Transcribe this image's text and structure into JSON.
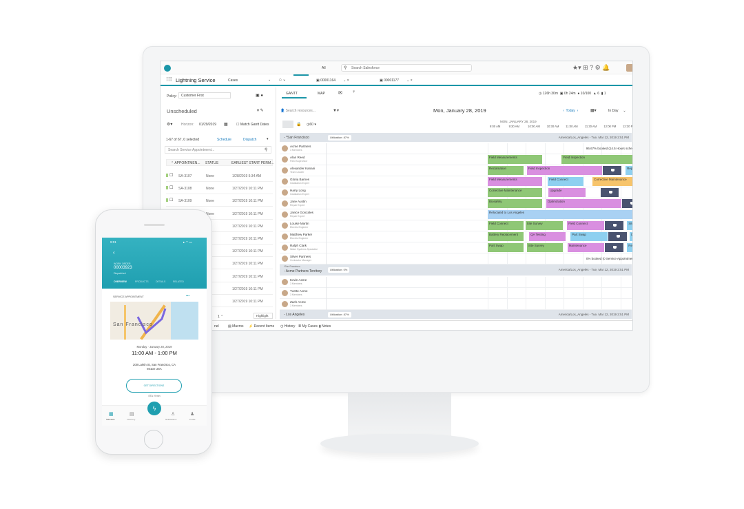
{
  "colors": {
    "accent": "#1b96a8",
    "green": "#8fc776",
    "purple": "#d98fe0",
    "blue": "#8ed0f0",
    "orange": "#f7c46b",
    "pink": "#f26e93",
    "break": "#4a5370",
    "relocated": "#a9d1f3"
  },
  "header": {
    "search_scope": "All",
    "search_placeholder": "Search Salesforce",
    "app_name": "Lightning Service",
    "nav_object": "Cases",
    "tabs": [
      {
        "label": "00001164"
      },
      {
        "label": "00001177"
      }
    ]
  },
  "left": {
    "policy_label": "Policy:",
    "policy_value": "Customer First",
    "list_title": "Unscheduled",
    "horizon_label": "Horizon:",
    "horizon_value": "01/29/2019",
    "match_gantt": "Match Gantt Dates",
    "count": "1-67 of 67, 0 selected",
    "schedule": "Schedule",
    "dispatch": "Dispatch",
    "search_placeholder": "Search Service Appointment...",
    "columns": [
      "APPOINTMEN...",
      "STATUS",
      "EARLIEST START PERM..."
    ],
    "rows": [
      {
        "id": "SA-3107",
        "status": "None",
        "start": "1/28/2019 5:34 AM"
      },
      {
        "id": "SA-3108",
        "status": "None",
        "start": "1/27/2019 10:11 PM"
      },
      {
        "id": "SA-3109",
        "status": "None",
        "start": "1/27/2019 10:11 PM"
      },
      {
        "id": "",
        "status": "None",
        "start": "1/27/2019 10:11 PM"
      },
      {
        "id": "",
        "status": "",
        "start": "1/27/2019 10:11 PM"
      },
      {
        "id": "",
        "status": "",
        "start": "1/27/2019 10:11 PM"
      },
      {
        "id": "",
        "status": "",
        "start": "1/27/2019 10:11 PM"
      },
      {
        "id": "",
        "status": "",
        "start": "1/27/2019 10:11 PM"
      },
      {
        "id": "",
        "status": "",
        "start": "1/27/2019 10:11 PM"
      },
      {
        "id": "",
        "status": "",
        "start": "1/27/2019 10:11 PM"
      },
      {
        "id": "",
        "status": "",
        "start": "1/27/2019 10:11 PM"
      }
    ],
    "page": "1",
    "highlight": "Highlight"
  },
  "gantt": {
    "tab_gantt": "GANTT",
    "tab_map": "MAP",
    "kpis": [
      "126h 30m",
      "0h 24m",
      "10/100",
      "6",
      "1"
    ],
    "search_placeholder": "Search resources...",
    "date_title": "Mon, January 28, 2019",
    "today": "Today",
    "view": "In Day",
    "day_header": "MON, JANUARY 28, 2019",
    "zoom": "60",
    "times": [
      "9:00 AM",
      "9:30 AM",
      "10:00 AM",
      "10:30 AM",
      "11:00 AM",
      "11:30 AM",
      "12:00 PM",
      "12:30 PM",
      "1:00 PM",
      "1:30 PM",
      "2:00 PM",
      "2:30 PM",
      "3:00 PM",
      "3:30 PM",
      "4:00 PM",
      "4:30 PM"
    ],
    "rows": [
      {
        "type": "group",
        "name": "*San Francisco",
        "util": "Utilization: 87%",
        "tz": "America/Los_Angeles - Tue, Mar 12, 2019 2:51 PM"
      },
      {
        "type": "res",
        "name": "Acme Partners",
        "role": "3 Members",
        "note": "96.67% booked (14.5 Hours scheduled out of 15)"
      },
      {
        "type": "res",
        "name": "Alan Reed",
        "role": "Field Supervisor",
        "bars": [
          {
            "l": "Field Measurements",
            "c": "green",
            "s": 9,
            "e": 10.45
          },
          {
            "l": "Field Inspection",
            "c": "green",
            "s": 10.95,
            "e": 12.97
          },
          {
            "l": "",
            "c": "break",
            "s": 12.97,
            "e": 13.45
          },
          {
            "l": "Corrective Maintenance",
            "c": "blue",
            "s": 13.99,
            "e": 15.46
          }
        ]
      },
      {
        "type": "res",
        "name": "Alexander Kanani",
        "role": "Team Leader",
        "bars": [
          {
            "l": "Reclamation",
            "c": "green",
            "s": 9,
            "e": 9.96
          },
          {
            "l": "Field Inspection",
            "c": "purple",
            "s": 10.03,
            "e": 12.03
          },
          {
            "l": "",
            "c": "break",
            "s": 12.03,
            "e": 12.52
          },
          {
            "l": "Repair Estimate",
            "c": "blue",
            "s": 12.63,
            "e": 13.61
          },
          {
            "l": "Demolization",
            "c": "orange",
            "s": 15.28,
            "e": 17
          }
        ]
      },
      {
        "type": "res",
        "name": "Gloria Barnes",
        "role": "Installation Expert",
        "bars": [
          {
            "l": "Field Measurements",
            "c": "purple",
            "s": 9,
            "e": 10.45
          },
          {
            "l": "Field Connect",
            "c": "blue",
            "s": 10.58,
            "e": 11.54
          },
          {
            "l": "Corrective Maintenance",
            "c": "orange",
            "s": 11.76,
            "e": 13.25
          },
          {
            "l": "",
            "c": "break",
            "s": 13.25,
            "e": 13.74
          },
          {
            "l": "Break-Fix",
            "c": "pink",
            "s": 13.95,
            "e": 15.46
          },
          {
            "l": "Design",
            "c": "pink",
            "s": 15.55,
            "e": 16.55
          },
          {
            "l": "B",
            "c": "pink",
            "s": 16.82,
            "e": 17
          }
        ]
      },
      {
        "type": "res",
        "name": "Harry Long",
        "role": "Installation Expert",
        "bars": [
          {
            "l": "Corrective Maintenance",
            "c": "green",
            "s": 9,
            "e": 10.45
          },
          {
            "l": "Upgrade",
            "c": "purple",
            "s": 10.6,
            "e": 11.6
          },
          {
            "l": "",
            "c": "break",
            "s": 11.98,
            "e": 12.45
          },
          {
            "l": "Rebuild",
            "c": "orange",
            "s": 13.48,
            "e": 15.46
          }
        ]
      },
      {
        "type": "res",
        "name": "Jane Austin",
        "role": "Repair Expert",
        "bars": [
          {
            "l": "Biosafety",
            "c": "green",
            "s": 9,
            "e": 10.45
          },
          {
            "l": "Optimization",
            "c": "purple",
            "s": 10.54,
            "e": 12.54
          },
          {
            "l": "",
            "c": "break",
            "s": 12.54,
            "e": 13.03
          },
          {
            "l": "Site Survey",
            "c": "blue",
            "s": 13.12,
            "e": 14.12
          },
          {
            "l": "Field Connect",
            "c": "orange",
            "s": 14.21,
            "e": 15.19
          },
          {
            "l": "Field Measurements",
            "c": "orange",
            "s": 15.24,
            "e": 16.73
          },
          {
            "l": "S",
            "c": "orange",
            "s": 16.93,
            "e": 17
          }
        ]
      },
      {
        "type": "res",
        "name": "Janice Gonzales",
        "role": "Repair Expert",
        "bars": [
          {
            "l": "Relocated to Los Angeles",
            "c": "relocated",
            "s": 9,
            "e": 17
          }
        ]
      },
      {
        "type": "res",
        "name": "Louise Martin",
        "role": "Electric Engineer",
        "bars": [
          {
            "l": "Field Connect",
            "c": "green",
            "s": 9,
            "e": 9.96
          },
          {
            "l": "Site Survey",
            "c": "green",
            "s": 9.99,
            "e": 10.99
          },
          {
            "l": "Field Connect",
            "c": "purple",
            "s": 11.09,
            "e": 12.09
          },
          {
            "l": "",
            "c": "break",
            "s": 12.09,
            "e": 12.58
          },
          {
            "l": "Site Survey",
            "c": "blue",
            "s": 12.67,
            "e": 13.66
          },
          {
            "l": "Upgrade",
            "c": "blue",
            "s": 13.75,
            "e": 14.73
          },
          {
            "l": "Repair Estimate",
            "c": "orange",
            "s": 14.93,
            "e": 15.93
          },
          {
            "l": "Field Measurem...",
            "c": "orange",
            "s": 16.24,
            "e": 17
          }
        ]
      },
      {
        "type": "res",
        "name": "Matthew Parker",
        "role": "Electric Engineer",
        "bars": [
          {
            "l": "Battery Replacement",
            "c": "green",
            "s": 9,
            "e": 9.96
          },
          {
            "l": "QA Testing",
            "c": "purple",
            "s": 10.09,
            "e": 11.07
          },
          {
            "l": "Part Swap",
            "c": "blue",
            "s": 11.18,
            "e": 12.18
          },
          {
            "l": "",
            "c": "break",
            "s": 12.18,
            "e": 12.67
          },
          {
            "l": "Deinstallation",
            "c": "blue",
            "s": 12.74,
            "e": 14.73
          },
          {
            "l": "Repair Estimate",
            "c": "orange",
            "s": 14.81,
            "e": 15.81
          },
          {
            "l": "Break-Fix",
            "c": "orange",
            "s": 15.91,
            "e": 17
          }
        ]
      },
      {
        "type": "res",
        "name": "Ralph Clark",
        "role": "Water Systems Specialist",
        "bars": [
          {
            "l": "Part Swap",
            "c": "green",
            "s": 9,
            "e": 9.96
          },
          {
            "l": "Site Survey",
            "c": "green",
            "s": 10.03,
            "e": 11.0
          },
          {
            "l": "Maintenance",
            "c": "purple",
            "s": 11.1,
            "e": 12.09
          },
          {
            "l": "",
            "c": "break",
            "s": 12.09,
            "e": 12.58
          },
          {
            "l": "Rebuild",
            "c": "blue",
            "s": 12.67,
            "e": 14.64
          },
          {
            "l": "Field Measurements",
            "c": "orange",
            "s": 14.83,
            "e": 16.3
          },
          {
            "l": "Reclam...",
            "c": "orange",
            "s": 16.39,
            "e": 17
          }
        ]
      },
      {
        "type": "res",
        "name": "Silver Partners",
        "role": "Contractor Manager",
        "note": "0% booked (0 Service Appointments scheduled out of 10)"
      },
      {
        "type": "group",
        "name": "Acme Partners Territory",
        "sub": "*San Francisco",
        "util": "Utilization: 0%",
        "tz": "America/Los_Angeles - Tue, Mar 12, 2019 2:51 PM"
      },
      {
        "type": "res",
        "name": "Kevin Acme",
        "role": "3 Members"
      },
      {
        "type": "res",
        "name": "Yvette Acme",
        "role": "3 Members"
      },
      {
        "type": "res",
        "name": "Zach Acme",
        "role": "3 Members"
      },
      {
        "type": "group",
        "name": "Los Angeles",
        "util": "Utilization: 87%",
        "tz": "America/Los_Angeles - Tue, Mar 12, 2019 2:51 PM"
      }
    ]
  },
  "utility_bar": [
    "nel",
    "Macros",
    "Recent Items",
    "History",
    "My Cases",
    "Notes"
  ],
  "phone": {
    "time": "9:01",
    "back": "‹",
    "object": "WORK ORDER",
    "number": "00003923",
    "status": "Dispatched",
    "tabs": [
      "OVERVIEW",
      "PRODUCTS",
      "DETAILS",
      "RELATED"
    ],
    "section": "SERVICE APPOINTMENT",
    "more": "•••",
    "map_label": "San Francisco",
    "date": "Monday · January 28, 2019",
    "time_range": "11:00 AM - 1:00 PM",
    "address1": "200 Larkin St, San Francisco, CA",
    "address2": "94102 USA",
    "directions": "GET DIRECTIONS",
    "eta": "ETA: 9 min",
    "nav": [
      "Schedule",
      "Inventory",
      "",
      "Notifications",
      "Profile"
    ]
  }
}
